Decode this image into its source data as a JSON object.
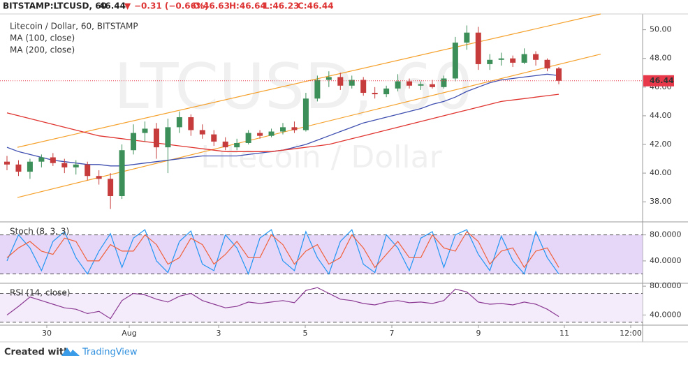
{
  "header": {
    "symbol": "BITSTAMP:LTCUSD, 60",
    "last": "46.44",
    "change": "−0.31 (−0.66%)",
    "ohlc": [
      "O:46.63",
      "H:46.64",
      "L:46.23",
      "C:46.44"
    ]
  },
  "x_axis": {
    "labels": [
      "30",
      "Aug",
      "3",
      "5",
      "7",
      "9",
      "11",
      "12:00"
    ]
  },
  "footer": {
    "created": "Created with",
    "brand": "TradingView"
  },
  "chart_data": [
    {
      "type": "candlestick",
      "title": "Litecoin / Dollar, 60, BITSTAMP",
      "watermark": [
        "LTCUSD, 60",
        "Litecoin / Dollar"
      ],
      "up_color": "#3d8f5a",
      "down_color": "#c63b3b",
      "candles": [
        [
          40.8,
          41.2,
          40.2,
          40.6
        ],
        [
          40.6,
          40.9,
          39.8,
          40.1
        ],
        [
          40.1,
          41.0,
          39.6,
          40.8
        ],
        [
          40.8,
          41.3,
          40.4,
          41.1
        ],
        [
          41.1,
          41.4,
          40.5,
          40.7
        ],
        [
          40.7,
          41.0,
          40.0,
          40.4
        ],
        [
          40.4,
          40.9,
          39.9,
          40.6
        ],
        [
          40.6,
          40.8,
          39.5,
          39.8
        ],
        [
          39.8,
          40.2,
          39.2,
          39.6
        ],
        [
          39.6,
          40.0,
          37.5,
          38.4
        ],
        [
          38.4,
          42.0,
          38.2,
          41.6
        ],
        [
          41.6,
          43.4,
          41.3,
          42.8
        ],
        [
          42.8,
          43.6,
          42.2,
          43.1
        ],
        [
          43.1,
          43.5,
          41.0,
          41.8
        ],
        [
          41.8,
          43.8,
          40.0,
          43.2
        ],
        [
          43.2,
          44.3,
          42.8,
          43.9
        ],
        [
          43.9,
          44.1,
          42.6,
          43.0
        ],
        [
          43.0,
          43.4,
          42.4,
          42.7
        ],
        [
          42.7,
          43.0,
          41.9,
          42.2
        ],
        [
          42.2,
          42.5,
          41.6,
          41.8
        ],
        [
          41.8,
          42.4,
          41.6,
          42.1
        ],
        [
          42.1,
          43.0,
          42.0,
          42.8
        ],
        [
          42.8,
          43.0,
          42.4,
          42.6
        ],
        [
          42.6,
          43.1,
          42.5,
          42.9
        ],
        [
          42.9,
          43.5,
          42.7,
          43.2
        ],
        [
          43.2,
          43.6,
          42.8,
          43.0
        ],
        [
          43.0,
          45.6,
          42.9,
          45.2
        ],
        [
          45.2,
          46.8,
          45.0,
          46.5
        ],
        [
          46.5,
          47.1,
          46.0,
          46.7
        ],
        [
          46.7,
          47.0,
          45.8,
          46.1
        ],
        [
          46.1,
          46.8,
          45.9,
          46.5
        ],
        [
          46.5,
          46.7,
          45.4,
          45.6
        ],
        [
          45.6,
          46.0,
          45.2,
          45.5
        ],
        [
          45.5,
          46.1,
          45.3,
          45.9
        ],
        [
          45.9,
          46.9,
          45.7,
          46.4
        ],
        [
          46.4,
          46.6,
          45.9,
          46.1
        ],
        [
          46.1,
          46.4,
          45.8,
          46.2
        ],
        [
          46.2,
          46.5,
          45.9,
          46.0
        ],
        [
          46.0,
          46.8,
          45.9,
          46.6
        ],
        [
          46.6,
          49.5,
          46.4,
          49.1
        ],
        [
          49.1,
          50.3,
          48.6,
          49.8
        ],
        [
          49.8,
          50.2,
          47.2,
          47.6
        ],
        [
          47.6,
          48.3,
          47.2,
          47.9
        ],
        [
          47.9,
          48.4,
          47.5,
          48.0
        ],
        [
          48.0,
          48.2,
          47.4,
          47.7
        ],
        [
          47.7,
          48.7,
          47.6,
          48.3
        ],
        [
          48.3,
          48.5,
          47.5,
          47.9
        ],
        [
          47.9,
          48.0,
          47.1,
          47.3
        ],
        [
          47.3,
          47.4,
          46.2,
          46.44
        ]
      ],
      "series": [
        {
          "name": "MA (100, close)",
          "color": "#3f4fb0",
          "values": [
            41.8,
            41.5,
            41.3,
            41.1,
            40.9,
            40.8,
            40.7,
            40.6,
            40.6,
            40.5,
            40.5,
            40.6,
            40.7,
            40.8,
            40.9,
            41.0,
            41.1,
            41.2,
            41.2,
            41.2,
            41.2,
            41.3,
            41.4,
            41.5,
            41.6,
            41.8,
            42.0,
            42.3,
            42.6,
            42.9,
            43.2,
            43.5,
            43.7,
            43.9,
            44.1,
            44.3,
            44.5,
            44.8,
            45.0,
            45.3,
            45.7,
            46.0,
            46.3,
            46.5,
            46.6,
            46.7,
            46.8,
            46.9,
            46.8
          ]
        },
        {
          "name": "MA (200, close)",
          "color": "#e0342f",
          "values": [
            44.2,
            44.0,
            43.8,
            43.6,
            43.4,
            43.2,
            43.0,
            42.8,
            42.6,
            42.5,
            42.4,
            42.3,
            42.2,
            42.1,
            42.0,
            41.9,
            41.8,
            41.7,
            41.6,
            41.5,
            41.5,
            41.5,
            41.5,
            41.5,
            41.6,
            41.7,
            41.8,
            41.9,
            42.0,
            42.2,
            42.4,
            42.6,
            42.8,
            43.0,
            43.2,
            43.4,
            43.6,
            43.8,
            44.0,
            44.2,
            44.4,
            44.6,
            44.8,
            45.0,
            45.1,
            45.2,
            45.3,
            45.4,
            45.5
          ]
        }
      ],
      "trend_lines": [
        {
          "color": "#f5a02a",
          "values": [
            41.8,
            51.1
          ]
        },
        {
          "color": "#f5a02a",
          "values": [
            38.3,
            48.3
          ]
        }
      ],
      "last_price": {
        "value": 46.44,
        "label": "46.44",
        "color": "#e8394a"
      },
      "ylim": [
        36.6,
        51.1
      ],
      "yticks": [
        {
          "value": 38,
          "label": "38.00"
        },
        {
          "value": 40,
          "label": "40.00"
        },
        {
          "value": 42,
          "label": "42.00"
        },
        {
          "value": 44,
          "label": "44.00"
        },
        {
          "value": 46,
          "label": "46.00"
        },
        {
          "value": 48,
          "label": "48.00"
        },
        {
          "value": 50,
          "label": "50.00"
        }
      ]
    },
    {
      "type": "oscillator",
      "title": "Stoch (8, 3, 3)",
      "band": [
        20,
        80
      ],
      "band_color": "#dcc6f5",
      "series": [
        {
          "color": "#2196f3",
          "values": [
            40,
            80,
            60,
            25,
            70,
            85,
            45,
            20,
            55,
            82,
            30,
            75,
            88,
            40,
            22,
            70,
            86,
            35,
            25,
            80,
            60,
            20,
            75,
            88,
            40,
            25,
            85,
            45,
            20,
            70,
            88,
            35,
            22,
            80,
            60,
            25,
            75,
            85,
            30,
            80,
            88,
            50,
            25,
            78,
            40,
            20,
            85,
            45,
            20
          ]
        },
        {
          "color": "#f0613b",
          "values": [
            45,
            60,
            70,
            55,
            50,
            75,
            70,
            40,
            40,
            65,
            55,
            55,
            80,
            65,
            35,
            45,
            75,
            65,
            35,
            50,
            70,
            45,
            45,
            80,
            65,
            35,
            55,
            65,
            35,
            45,
            80,
            60,
            30,
            50,
            70,
            45,
            45,
            80,
            60,
            55,
            85,
            70,
            35,
            55,
            60,
            30,
            55,
            60,
            30
          ]
        }
      ],
      "ylim": [
        5.6,
        100
      ],
      "yticks": [
        {
          "value": 40,
          "label": "40.0000"
        },
        {
          "value": 80,
          "label": "80.0000"
        }
      ]
    },
    {
      "type": "oscillator",
      "title": "RSI (14, close)",
      "band": [
        30,
        70
      ],
      "band_color": "#f1e4fa",
      "series": [
        {
          "color": "#8a3a93",
          "values": [
            40,
            52,
            65,
            60,
            55,
            50,
            48,
            42,
            45,
            35,
            60,
            70,
            68,
            62,
            58,
            66,
            70,
            60,
            55,
            50,
            52,
            58,
            56,
            58,
            60,
            57,
            74,
            78,
            70,
            62,
            60,
            56,
            54,
            58,
            60,
            57,
            58,
            56,
            60,
            76,
            72,
            58,
            55,
            56,
            54,
            58,
            55,
            48,
            38
          ]
        }
      ],
      "ylim": [
        26,
        84
      ],
      "yticks": [
        {
          "value": 40,
          "label": "40.0000"
        },
        {
          "value": 80,
          "label": "80.0000"
        }
      ]
    }
  ]
}
